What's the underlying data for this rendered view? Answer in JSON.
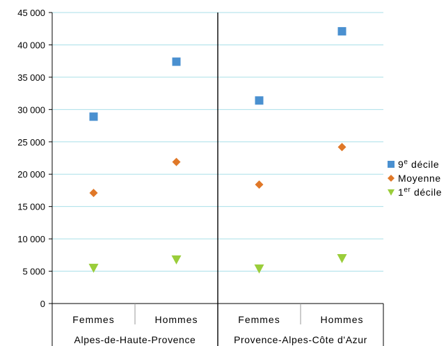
{
  "chart_data": {
    "type": "scatter",
    "title": "",
    "xlabel": "",
    "ylabel": "",
    "ylim": [
      0,
      45000
    ],
    "yticks": [
      0,
      5000,
      10000,
      15000,
      20000,
      25000,
      30000,
      35000,
      40000,
      45000
    ],
    "ytick_labels": [
      "0",
      "5 000",
      "10 000",
      "15 000",
      "20 000",
      "25 000",
      "30 000",
      "35 000",
      "40 000",
      "45 000"
    ],
    "grid": true,
    "legend_position": "right",
    "groups": [
      {
        "label": "Alpes-de-Haute-Provence",
        "categories": [
          "Femmes",
          "Hommes"
        ]
      },
      {
        "label": "Provence-Alpes-Côte d'Azur",
        "categories": [
          "Femmes",
          "Hommes"
        ]
      }
    ],
    "categories": [
      "Femmes",
      "Hommes",
      "Femmes",
      "Hommes"
    ],
    "series": [
      {
        "name": "9e décile",
        "name_base": "9",
        "name_sup": "e",
        "name_rest": " décile",
        "marker": "square",
        "color": "#4a90d0",
        "values": [
          28900,
          37400,
          31400,
          42100
        ]
      },
      {
        "name": "Moyenne",
        "name_base": "",
        "name_sup": "",
        "name_rest": "Moyenne",
        "marker": "diamond",
        "color": "#e07828",
        "values": [
          17100,
          21900,
          18400,
          24200
        ]
      },
      {
        "name": "1er décile",
        "name_base": "1",
        "name_sup": "er",
        "name_rest": " décile",
        "marker": "triangle-down",
        "color": "#9acd3a",
        "values": [
          5500,
          6800,
          5400,
          7000
        ]
      }
    ]
  }
}
